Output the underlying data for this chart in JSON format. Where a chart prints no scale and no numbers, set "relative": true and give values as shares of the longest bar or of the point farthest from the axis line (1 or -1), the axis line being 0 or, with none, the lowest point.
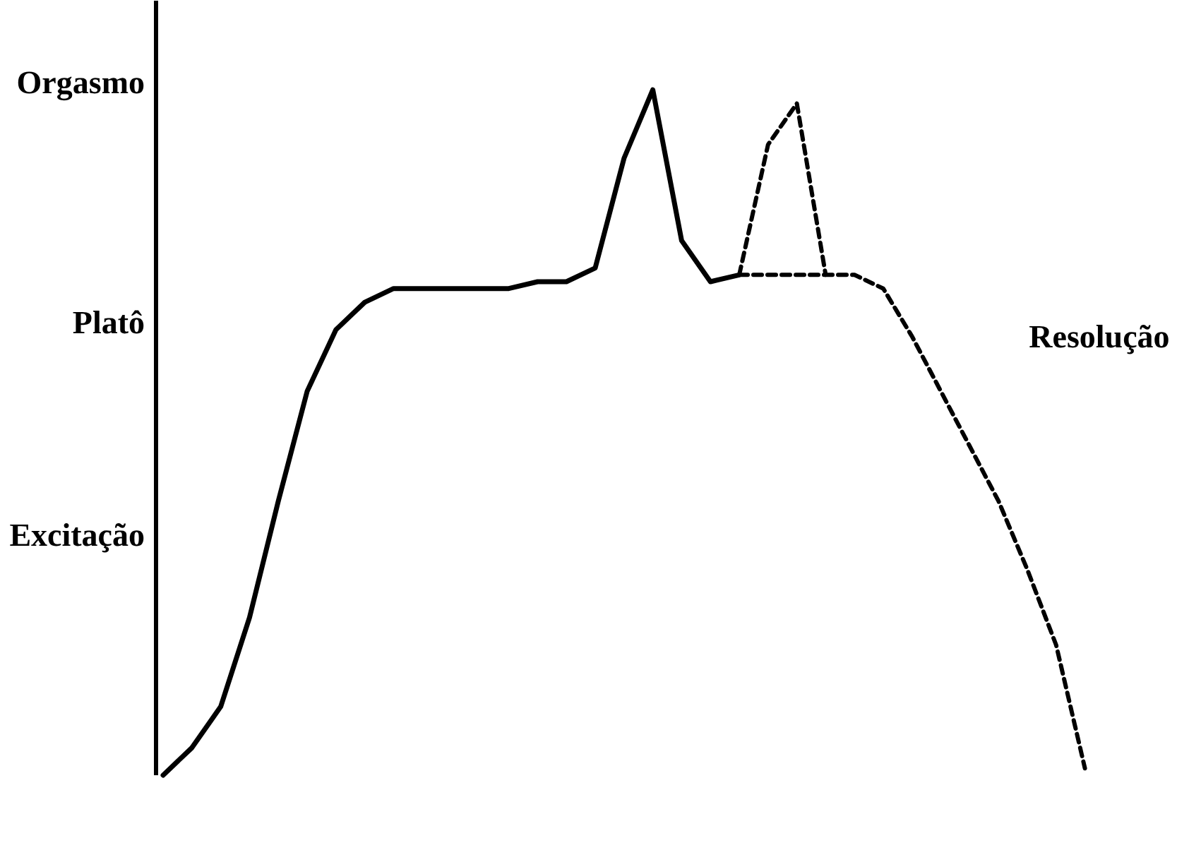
{
  "chart_data": {
    "type": "line",
    "relative": true,
    "tick_labels": false,
    "grid": false,
    "categories": [
      null,
      null,
      null,
      null,
      null,
      null,
      null,
      null,
      null,
      null,
      null,
      null,
      null,
      null,
      null,
      null,
      null,
      null,
      null,
      null,
      null,
      null,
      null,
      null,
      null,
      null,
      null,
      null,
      null,
      null,
      null,
      null,
      null
    ],
    "series": [
      {
        "color": "#000000",
        "line_style": "solid",
        "values": [
          0,
          0.04,
          0.1,
          0.23,
          0.4,
          0.56,
          0.65,
          0.69,
          0.71,
          0.71,
          0.71,
          0.71,
          0.71,
          0.72,
          0.72,
          0.74,
          0.9,
          1,
          0.78,
          0.72,
          0.73,
          null,
          null,
          null,
          null,
          null,
          null,
          null,
          null,
          null,
          null,
          null,
          null
        ]
      },
      {
        "color": "#000000",
        "line_style": "dashed",
        "values": [
          null,
          null,
          null,
          null,
          null,
          null,
          null,
          null,
          null,
          null,
          null,
          null,
          null,
          null,
          null,
          null,
          null,
          null,
          null,
          null,
          0.73,
          0.92,
          0.98,
          0.73,
          null,
          null,
          null,
          null,
          null,
          null,
          null,
          null,
          null
        ]
      },
      {
        "color": "#000000",
        "line_style": "dashed",
        "values": [
          null,
          null,
          null,
          null,
          null,
          null,
          null,
          null,
          null,
          null,
          null,
          null,
          null,
          null,
          null,
          null,
          null,
          null,
          null,
          null,
          0.73,
          0.73,
          0.73,
          0.73,
          0.73,
          0.71,
          0.64,
          0.56,
          0.48,
          0.4,
          0.3,
          0.19,
          0.01
        ]
      }
    ],
    "annotations": [
      "Orgasmo",
      "Platô",
      "Excitação",
      "Resolução"
    ]
  }
}
